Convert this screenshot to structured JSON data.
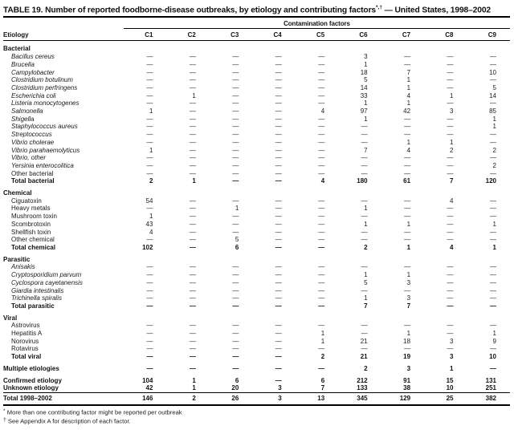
{
  "page": {
    "title": {
      "main": "TABLE 19. Number of reported foodborne-disease outbreaks, by etiology and contributing factors",
      "superscript": "*,†",
      "suffix": " — United States, 1998–2002"
    }
  },
  "table": {
    "span_header": "Contamination factors",
    "etiology_header": "Etiology",
    "columns": [
      "C1",
      "C2",
      "C3",
      "C4",
      "C5",
      "C6",
      "C7",
      "C8",
      "C9"
    ],
    "sections": [
      {
        "name": "Bacterial",
        "rows": [
          {
            "label": "Bacillus cereus",
            "style": "italic",
            "values": [
              "—",
              "—",
              "—",
              "—",
              "—",
              "3",
              "—",
              "—",
              "—"
            ]
          },
          {
            "label": "Brucella",
            "style": "italic",
            "values": [
              "—",
              "—",
              "—",
              "—",
              "—",
              "1",
              "—",
              "—",
              "—"
            ]
          },
          {
            "label": "Campylobacter",
            "style": "italic",
            "values": [
              "—",
              "—",
              "—",
              "—",
              "—",
              "18",
              "7",
              "—",
              "10"
            ]
          },
          {
            "label": "Clostridium botulinum",
            "style": "italic",
            "values": [
              "—",
              "—",
              "—",
              "—",
              "—",
              "5",
              "1",
              "—",
              "—"
            ]
          },
          {
            "label": "Clostridium perfringens",
            "style": "italic",
            "values": [
              "—",
              "—",
              "—",
              "—",
              "—",
              "14",
              "1",
              "—",
              "5"
            ]
          },
          {
            "label": "Escherichia coli",
            "style": "italic",
            "values": [
              "—",
              "1",
              "—",
              "—",
              "—",
              "33",
              "4",
              "1",
              "14"
            ]
          },
          {
            "label": "Listeria monocytogenes",
            "style": "italic",
            "values": [
              "—",
              "—",
              "—",
              "—",
              "—",
              "1",
              "1",
              "—",
              "—"
            ]
          },
          {
            "label": "Salmonella",
            "style": "italic",
            "values": [
              "1",
              "—",
              "—",
              "—",
              "4",
              "97",
              "42",
              "3",
              "85"
            ]
          },
          {
            "label": "Shigella",
            "style": "italic",
            "values": [
              "—",
              "—",
              "—",
              "—",
              "—",
              "1",
              "—",
              "—",
              "1"
            ]
          },
          {
            "label": "Staphylococcus aureus",
            "style": "italic",
            "values": [
              "—",
              "—",
              "—",
              "—",
              "—",
              "—",
              "—",
              "—",
              "1"
            ]
          },
          {
            "label": "Streptococcus",
            "style": "italic",
            "values": [
              "—",
              "—",
              "—",
              "—",
              "—",
              "—",
              "—",
              "—",
              "—"
            ]
          },
          {
            "label": "Vibrio cholerae",
            "style": "italic",
            "values": [
              "—",
              "—",
              "—",
              "—",
              "—",
              "—",
              "1",
              "1",
              "—"
            ]
          },
          {
            "label": "Vibrio parahaemolyticus",
            "style": "italic",
            "values": [
              "1",
              "—",
              "—",
              "—",
              "—",
              "7",
              "4",
              "2",
              "2"
            ]
          },
          {
            "label": "Vibrio, other",
            "style": "italic",
            "values": [
              "—",
              "—",
              "—",
              "—",
              "—",
              "—",
              "—",
              "—",
              "—"
            ]
          },
          {
            "label": "Yersinia enterocolitica",
            "style": "italic",
            "values": [
              "—",
              "—",
              "—",
              "—",
              "—",
              "—",
              "—",
              "—",
              "2"
            ]
          },
          {
            "label": "Other bacterial",
            "style": "plain",
            "values": [
              "—",
              "—",
              "—",
              "—",
              "—",
              "—",
              "—",
              "—",
              "—"
            ]
          },
          {
            "label": "Total bacterial",
            "style": "bold",
            "values": [
              "2",
              "1",
              "—",
              "—",
              "4",
              "180",
              "61",
              "7",
              "120"
            ]
          }
        ]
      },
      {
        "name": "Chemical",
        "rows": [
          {
            "label": "Ciguatoxin",
            "style": "plain",
            "values": [
              "54",
              "—",
              "—",
              "—",
              "—",
              "—",
              "—",
              "4",
              "—"
            ]
          },
          {
            "label": "Heavy metals",
            "style": "plain",
            "values": [
              "—",
              "—",
              "1",
              "—",
              "—",
              "1",
              "—",
              "—",
              "—"
            ]
          },
          {
            "label": "Mushroom toxin",
            "style": "plain",
            "values": [
              "1",
              "—",
              "—",
              "—",
              "—",
              "—",
              "—",
              "—",
              "—"
            ]
          },
          {
            "label": "Scombrotoxin",
            "style": "plain",
            "values": [
              "43",
              "—",
              "—",
              "—",
              "—",
              "1",
              "1",
              "—",
              "1"
            ]
          },
          {
            "label": "Shellfish toxin",
            "style": "plain",
            "values": [
              "4",
              "—",
              "—",
              "—",
              "—",
              "—",
              "—",
              "—",
              "—"
            ]
          },
          {
            "label": "Other chemical",
            "style": "plain",
            "values": [
              "—",
              "—",
              "5",
              "—",
              "—",
              "—",
              "—",
              "—",
              "—"
            ]
          },
          {
            "label": "Total chemical",
            "style": "bold",
            "values": [
              "102",
              "—",
              "6",
              "—",
              "—",
              "2",
              "1",
              "4",
              "1"
            ]
          }
        ]
      },
      {
        "name": "Parasitic",
        "rows": [
          {
            "label": "Anisakis",
            "style": "italic",
            "values": [
              "—",
              "—",
              "—",
              "—",
              "—",
              "—",
              "—",
              "—",
              "—"
            ]
          },
          {
            "label": "Cryptosporidium parvum",
            "style": "italic",
            "values": [
              "—",
              "—",
              "—",
              "—",
              "—",
              "1",
              "1",
              "—",
              "—"
            ]
          },
          {
            "label": "Cyclospora cayetanensis",
            "style": "italic",
            "values": [
              "—",
              "—",
              "—",
              "—",
              "—",
              "5",
              "3",
              "—",
              "—"
            ]
          },
          {
            "label": "Giardia intestinalis",
            "style": "italic",
            "values": [
              "—",
              "—",
              "—",
              "—",
              "—",
              "—",
              "—",
              "—",
              "—"
            ]
          },
          {
            "label": "Trichinella spiralis",
            "style": "italic",
            "values": [
              "—",
              "—",
              "—",
              "—",
              "—",
              "1",
              "3",
              "—",
              "—"
            ]
          },
          {
            "label": "Total parasitic",
            "style": "bold",
            "values": [
              "—",
              "—",
              "—",
              "—",
              "—",
              "7",
              "7",
              "—",
              "—"
            ]
          }
        ]
      },
      {
        "name": "Viral",
        "rows": [
          {
            "label": "Astrovirus",
            "style": "plain",
            "values": [
              "—",
              "—",
              "—",
              "—",
              "—",
              "—",
              "—",
              "—",
              "—"
            ]
          },
          {
            "label": "Hepatitis A",
            "style": "plain",
            "values": [
              "—",
              "—",
              "—",
              "—",
              "1",
              "—",
              "1",
              "—",
              "1"
            ]
          },
          {
            "label": "Norovirus",
            "style": "plain",
            "values": [
              "—",
              "—",
              "—",
              "—",
              "1",
              "21",
              "18",
              "3",
              "9"
            ]
          },
          {
            "label": "Rotavirus",
            "style": "plain",
            "values": [
              "—",
              "—",
              "—",
              "—",
              "—",
              "—",
              "—",
              "—",
              "—"
            ]
          },
          {
            "label": "Total viral",
            "style": "bold",
            "values": [
              "—",
              "—",
              "—",
              "—",
              "2",
              "21",
              "19",
              "3",
              "10"
            ]
          }
        ]
      }
    ],
    "summary_rows": [
      {
        "label": "Multiple etiologies",
        "style": "bold",
        "gap_top": true,
        "values": [
          "—",
          "—",
          "—",
          "—",
          "—",
          "2",
          "3",
          "1",
          "—"
        ]
      },
      {
        "label": "Confirmed etiology",
        "style": "bold",
        "gap_top": true,
        "values": [
          "104",
          "1",
          "6",
          "—",
          "6",
          "212",
          "91",
          "15",
          "131"
        ]
      },
      {
        "label": "Unknown etiology",
        "style": "bold",
        "values": [
          "42",
          "1",
          "20",
          "3",
          "7",
          "133",
          "38",
          "10",
          "251"
        ]
      },
      {
        "label": "Total 1998–2002",
        "style": "bold",
        "gap_top": true,
        "rule_top": true,
        "values": [
          "146",
          "2",
          "26",
          "3",
          "13",
          "345",
          "129",
          "25",
          "382"
        ]
      }
    ],
    "footnotes": [
      {
        "marker": "*",
        "text": "More than one contributing factor might be reported per outbreak"
      },
      {
        "marker": "†",
        "text": "See Appendix A for description of each factor."
      }
    ]
  }
}
